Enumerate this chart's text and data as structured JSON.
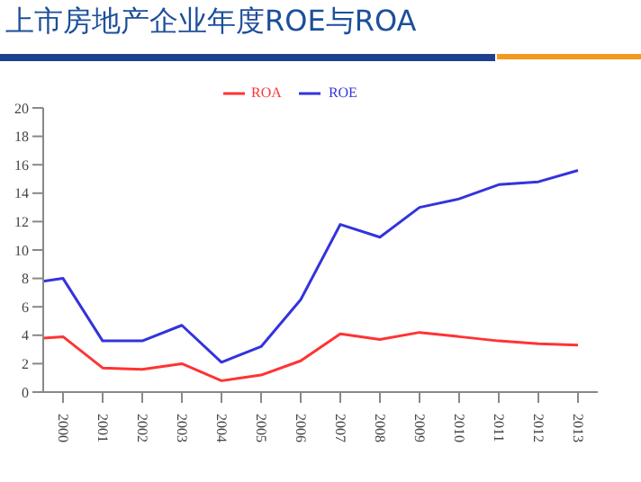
{
  "chart_data": {
    "type": "line",
    "title": "上市房地产企业年度ROE与ROA",
    "x": [
      1999.5,
      2000,
      2001,
      2002,
      2003,
      2004,
      2005,
      2006,
      2007,
      2008,
      2009,
      2010,
      2011,
      2012,
      2013
    ],
    "series": [
      {
        "name": "ROA",
        "color": "#ff3333",
        "values": [
          3.8,
          3.9,
          1.7,
          1.6,
          2.0,
          0.8,
          1.2,
          2.2,
          4.1,
          3.7,
          4.2,
          3.9,
          3.6,
          3.4,
          3.3
        ]
      },
      {
        "name": "ROE",
        "color": "#3333dd",
        "values": [
          7.8,
          8.0,
          3.6,
          3.6,
          4.7,
          2.1,
          3.2,
          6.5,
          11.8,
          10.9,
          13.0,
          13.6,
          14.6,
          14.8,
          15.6
        ]
      }
    ],
    "xlim": [
      1999.5,
      2013.5
    ],
    "xticks": [
      2000,
      2001,
      2002,
      2003,
      2004,
      2005,
      2006,
      2007,
      2008,
      2009,
      2010,
      2011,
      2012,
      2013
    ],
    "ylim": [
      0,
      20
    ],
    "yticks": [
      0,
      2,
      4,
      6,
      8,
      10,
      12,
      14,
      16,
      18,
      20
    ],
    "grid": false,
    "legend": "top",
    "marker": "none",
    "line_style": "solid"
  }
}
